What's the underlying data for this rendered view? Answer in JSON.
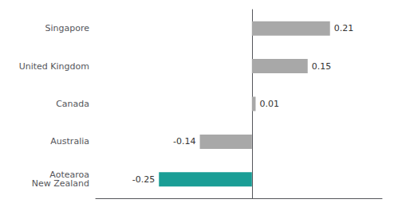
{
  "chart_data": {
    "type": "bar",
    "orientation": "horizontal",
    "categories": [
      "Singapore",
      "United Kingdom",
      "Canada",
      "Australia",
      "Aotearoa\nNew Zealand"
    ],
    "values": [
      0.21,
      0.15,
      0.01,
      -0.14,
      -0.25
    ],
    "colors": [
      "#a8a8a8",
      "#a8a8a8",
      "#a8a8a8",
      "#a8a8a8",
      "#1a9e96"
    ],
    "xlim": [
      -0.42,
      0.35
    ],
    "xticks": [],
    "grid": false,
    "data_labels": true,
    "tick_labels": "y"
  }
}
